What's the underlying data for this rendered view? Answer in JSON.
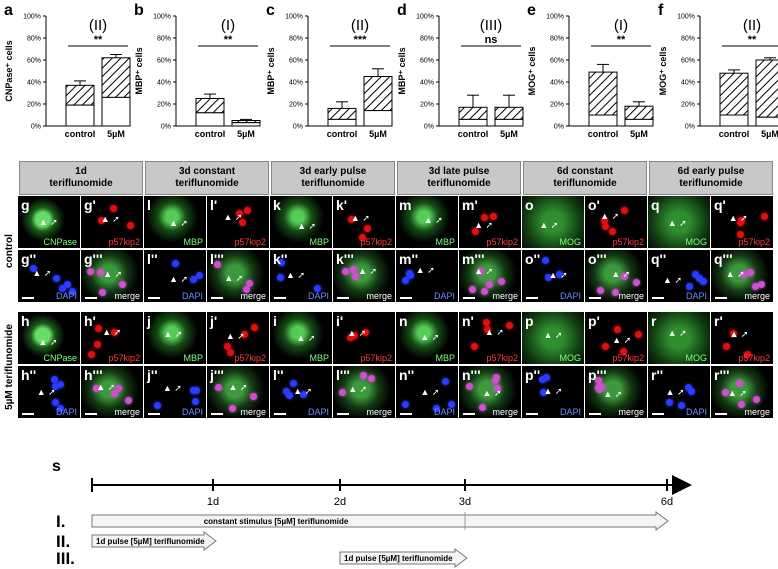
{
  "charts": [
    {
      "panel": "a",
      "type": "bar",
      "ylabel": "CNPase⁺ cells",
      "ylim": [
        0,
        100
      ],
      "ticks": [
        0,
        20,
        40,
        60,
        80,
        100
      ],
      "tick_suffix": "%",
      "categories": [
        "control",
        "5µM"
      ],
      "group": "(II)",
      "sig": "**",
      "hatched_total": [
        37,
        62
      ],
      "plain_part": [
        19,
        26
      ],
      "error": [
        4,
        3
      ]
    },
    {
      "panel": "b",
      "type": "bar",
      "ylabel": "MBP⁺ cells",
      "ylim": [
        0,
        100
      ],
      "ticks": [
        0,
        20,
        40,
        60,
        80,
        100
      ],
      "tick_suffix": "%",
      "categories": [
        "control",
        "5µM"
      ],
      "group": "(I)",
      "sig": "**",
      "hatched_total": [
        25,
        5
      ],
      "plain_part": [
        12,
        3
      ],
      "error": [
        4,
        1
      ]
    },
    {
      "panel": "c",
      "type": "bar",
      "ylabel": "MBP⁺ cells",
      "ylim": [
        0,
        100
      ],
      "ticks": [
        0,
        20,
        40,
        60,
        80,
        100
      ],
      "tick_suffix": "%",
      "categories": [
        "control",
        "5µM"
      ],
      "group": "(II)",
      "sig": "***",
      "hatched_total": [
        16,
        45
      ],
      "plain_part": [
        6,
        14
      ],
      "error": [
        6,
        7
      ]
    },
    {
      "panel": "d",
      "type": "bar",
      "ylabel": "MBP⁺ cells",
      "ylim": [
        0,
        100
      ],
      "ticks": [
        0,
        20,
        40,
        60,
        80,
        100
      ],
      "tick_suffix": "%",
      "categories": [
        "control",
        "5µM"
      ],
      "group": "(III)",
      "sig": "ns",
      "hatched_total": [
        17,
        17
      ],
      "plain_part": [
        6,
        6
      ],
      "error": [
        11,
        11
      ]
    },
    {
      "panel": "e",
      "type": "bar",
      "ylabel": "MOG⁺ cells",
      "ylim": [
        0,
        100
      ],
      "ticks": [
        0,
        20,
        40,
        60,
        80,
        100
      ],
      "tick_suffix": "%",
      "categories": [
        "control",
        "5µM"
      ],
      "group": "(I)",
      "sig": "**",
      "hatched_total": [
        49,
        18
      ],
      "plain_part": [
        10,
        6
      ],
      "error": [
        7,
        4
      ]
    },
    {
      "panel": "f",
      "type": "bar",
      "ylabel": "MOG⁺ cells",
      "ylim": [
        0,
        100
      ],
      "ticks": [
        0,
        20,
        40,
        60,
        80,
        100
      ],
      "tick_suffix": "%",
      "categories": [
        "control",
        "5µM"
      ],
      "group": "(II)",
      "sig": "**",
      "hatched_total": [
        48,
        60
      ],
      "plain_part": [
        10,
        8
      ],
      "error": [
        3,
        2
      ]
    }
  ],
  "conditions": [
    {
      "line1": "1d",
      "line2": "teriflunomide"
    },
    {
      "line1": "3d constant",
      "line2": "teriflunomide"
    },
    {
      "line1": "3d  early pulse",
      "line2": "teriflunomide"
    },
    {
      "line1": "3d late pulse",
      "line2": "teriflunomide"
    },
    {
      "line1": "6d constant",
      "line2": "teriflunomide"
    },
    {
      "line1": "6d  early pulse",
      "line2": "teriflunomide"
    }
  ],
  "row_labels": {
    "control": "control",
    "treated": "5µM teriflunomide"
  },
  "tiles": [
    [
      "g",
      "g'",
      "l",
      "l'",
      "k",
      "k'",
      "m",
      "m'",
      "o",
      "o'",
      "q",
      "q'"
    ],
    [
      "g''",
      "g'''",
      "l''",
      "l'''",
      "k''",
      "k'''",
      "m''",
      "m'''",
      "o''",
      "o'''",
      "q''",
      "q'''"
    ],
    [
      "h",
      "h'",
      "j",
      "j'",
      "i",
      "i'",
      "n",
      "n'",
      "p",
      "p'",
      "r",
      "r'"
    ],
    [
      "h''",
      "h'''",
      "j''",
      "j'''",
      "l''",
      "l'''",
      "n''",
      "n'''",
      "p''",
      "p'''",
      "r''",
      "r'''"
    ]
  ],
  "channels": {
    "row0": [
      "CNPase",
      "p57kip2",
      "MBP",
      "p57kip2",
      "MBP",
      "p57kip2",
      "MBP",
      "p57kip2",
      "MOG",
      "p57kip2",
      "MOG",
      "p57kip2"
    ],
    "row1": [
      "DAPI",
      "merge",
      "DAPI",
      "merge",
      "DAPI",
      "merge",
      "DAPI",
      "merge",
      "DAPI",
      "merge",
      "DAPI",
      "merge"
    ],
    "row2": [
      "CNPase",
      "p57kip2",
      "MBP",
      "p57kip2",
      "MBP",
      "p57kip2",
      "MBP",
      "p57kip2",
      "MOG",
      "p57kip2",
      "MOG",
      "p57kip2"
    ],
    "row3": [
      "DAPI",
      "merge",
      "DAPI",
      "merge",
      "DAPI",
      "merge",
      "DAPI",
      "merge",
      "DAPI",
      "merge",
      "DAPI",
      "merge"
    ]
  },
  "channel_colors": {
    "CNPase": "#7fff7f",
    "MBP": "#7fff7f",
    "MOG": "#7fff7f",
    "p57kip2": "#ff3b3b",
    "DAPI": "#6f8cff",
    "merge": "#ffffff"
  },
  "timeline": {
    "panel": "s",
    "ticks": [
      "1d",
      "2d",
      "3d",
      "6d"
    ],
    "rows": [
      {
        "id": "I.",
        "label": "constant stimulus [5µM] teriflunomide"
      },
      {
        "id": "II.",
        "label": "1d pulse [5µM] teriflunomide"
      },
      {
        "id": "III.",
        "label": "1d pulse [5µM] teriflunomide"
      }
    ]
  }
}
